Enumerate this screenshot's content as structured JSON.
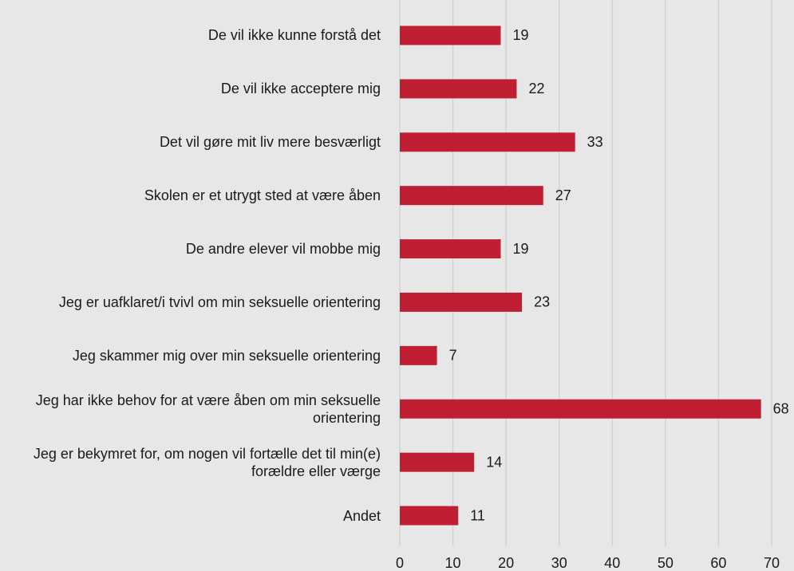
{
  "chart_data": {
    "type": "bar",
    "orientation": "horizontal",
    "categories": [
      "De vil ikke kunne forstå det",
      "De vil ikke acceptere mig",
      "Det vil gøre mit liv mere besværligt",
      "Skolen er et utrygt sted at være åben",
      "De andre elever vil mobbe mig",
      "Jeg er uafklaret/i tvivl om min seksuelle orientering",
      "Jeg skammer mig over min seksuelle orientering",
      "Jeg har ikke behov for at være åben om min seksuelle orientering",
      "Jeg er bekymret for, om nogen vil fortælle det til min(e) forældre eller værge",
      "Andet"
    ],
    "values": [
      19,
      22,
      33,
      27,
      19,
      23,
      7,
      68,
      14,
      11
    ],
    "color": "#c01f33",
    "xlim": [
      0,
      70
    ],
    "xticks": [
      0,
      10,
      20,
      30,
      40,
      50,
      60,
      70
    ],
    "grid": true
  }
}
